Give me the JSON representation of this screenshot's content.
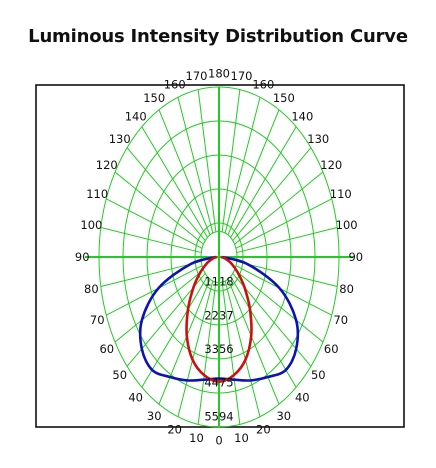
{
  "chart_data": {
    "type": "polar",
    "title": "Luminous Intensity Distribution Curve",
    "angle_unit": "deg",
    "angle_labels": [
      "180",
      "170",
      "160",
      "150",
      "140",
      "130",
      "120",
      "110",
      "100",
      "90",
      "80",
      "70",
      "60",
      "50",
      "40",
      "30",
      "20",
      "10",
      "0"
    ],
    "radial_tick_labels": [
      "1118",
      "2237",
      "3356",
      "4475",
      "5594"
    ],
    "radial_max": 5594,
    "grid": true,
    "series": [
      {
        "color": "#1010b8",
        "angles": [
          0,
          10,
          20,
          30,
          40,
          50,
          60,
          70,
          80,
          90
        ],
        "values": [
          4000,
          4100,
          4320,
          4560,
          4850,
          4700,
          4150,
          3000,
          1350,
          120
        ]
      },
      {
        "color": "#cc1010",
        "angles": [
          0,
          10,
          20,
          30,
          40,
          50,
          60,
          70,
          80,
          90
        ],
        "values": [
          4100,
          3950,
          3600,
          3000,
          2250,
          1550,
          1000,
          600,
          300,
          100
        ]
      }
    ]
  }
}
